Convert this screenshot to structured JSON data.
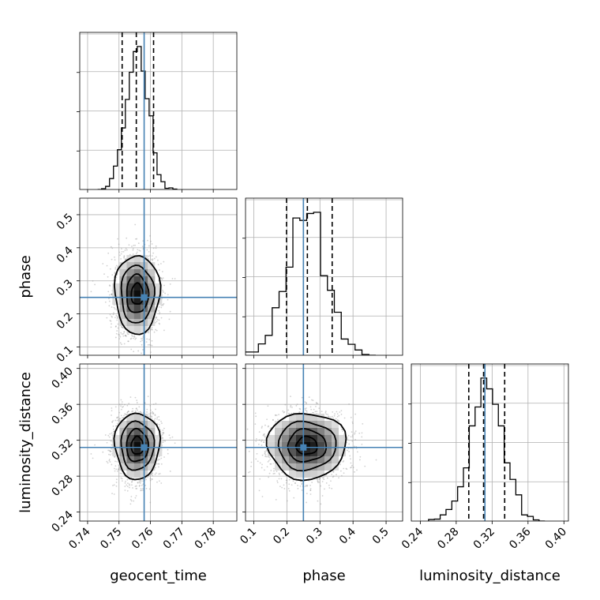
{
  "chart_data": {
    "type": "corner",
    "parameters": [
      "geocent_time",
      "phase",
      "luminosity_distance"
    ],
    "ranges": {
      "geocent_time": [
        0.7375,
        0.7875
      ],
      "phase": [
        0.075,
        0.55
      ],
      "luminosity_distance": [
        0.23,
        0.405
      ]
    },
    "ticks": {
      "geocent_time": [
        "0.74",
        "0.75",
        "0.76",
        "0.77",
        "0.78"
      ],
      "phase": [
        "0.1",
        "0.2",
        "0.3",
        "0.4",
        "0.5"
      ],
      "luminosity_distance": [
        "0.24",
        "0.28",
        "0.32",
        "0.36",
        "0.40"
      ]
    },
    "truths": {
      "geocent_time": 0.758,
      "phase": 0.25,
      "luminosity_distance": 0.312
    },
    "quantiles": {
      "geocent_time": [
        0.751,
        0.7555,
        0.761
      ],
      "phase": [
        0.199,
        0.262,
        0.337
      ],
      "luminosity_distance": [
        0.294,
        0.3105,
        0.334
      ]
    },
    "posterior": {
      "geocent_time": {
        "mean": 0.7558,
        "sd": 0.0035
      },
      "phase": {
        "mean": 0.26,
        "sd": 0.058
      },
      "luminosity_distance": {
        "mean": 0.314,
        "sd": 0.018
      }
    },
    "grid": true,
    "colors": {
      "truth": "#4682b4",
      "hist": "#000000",
      "points": "#808080"
    }
  }
}
